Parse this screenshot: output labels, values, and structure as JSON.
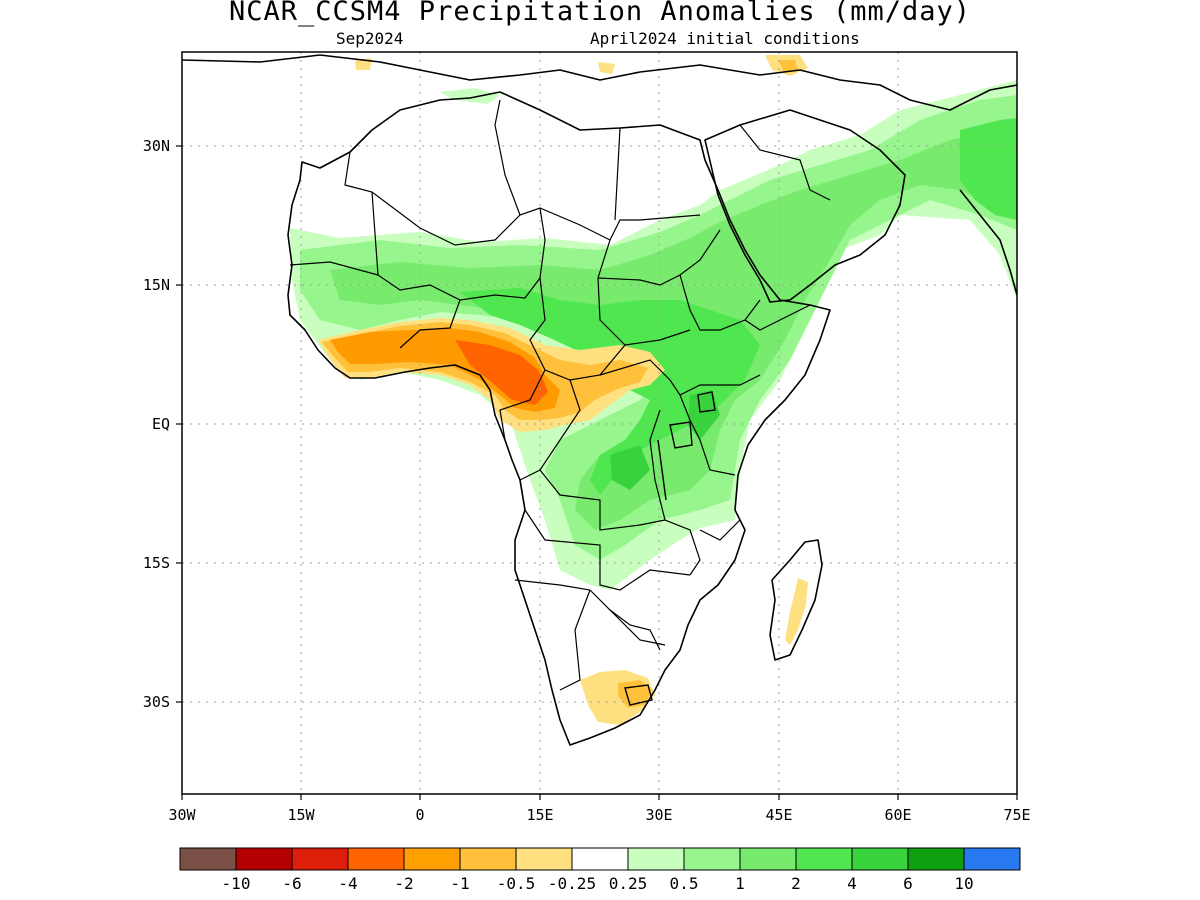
{
  "title": "NCAR_CCSM4 Precipitation Anomalies (mm/day)",
  "subtitle_left": "Sep2024",
  "subtitle_right": "April2024 initial conditions",
  "x_ticks": [
    "30W",
    "15W",
    "0",
    "15E",
    "30E",
    "45E",
    "60E",
    "75E"
  ],
  "y_ticks": [
    "30N",
    "15N",
    "EQ",
    "15S",
    "30S"
  ],
  "colorbar": {
    "colors": [
      "#7a5046",
      "#b40000",
      "#dc1e0a",
      "#ff6400",
      "#ffa000",
      "#ffc03c",
      "#ffe080",
      "#ffffff",
      "#c8ffbe",
      "#96f58c",
      "#78eb6e",
      "#50e650",
      "#37d23c",
      "#0fa00f",
      "#2878f0"
    ],
    "labels": [
      "-10",
      "-6",
      "-4",
      "-2",
      "-1",
      "-0.5",
      "-0.25",
      "0.25",
      "0.5",
      "1",
      "2",
      "4",
      "6",
      "10"
    ]
  }
}
